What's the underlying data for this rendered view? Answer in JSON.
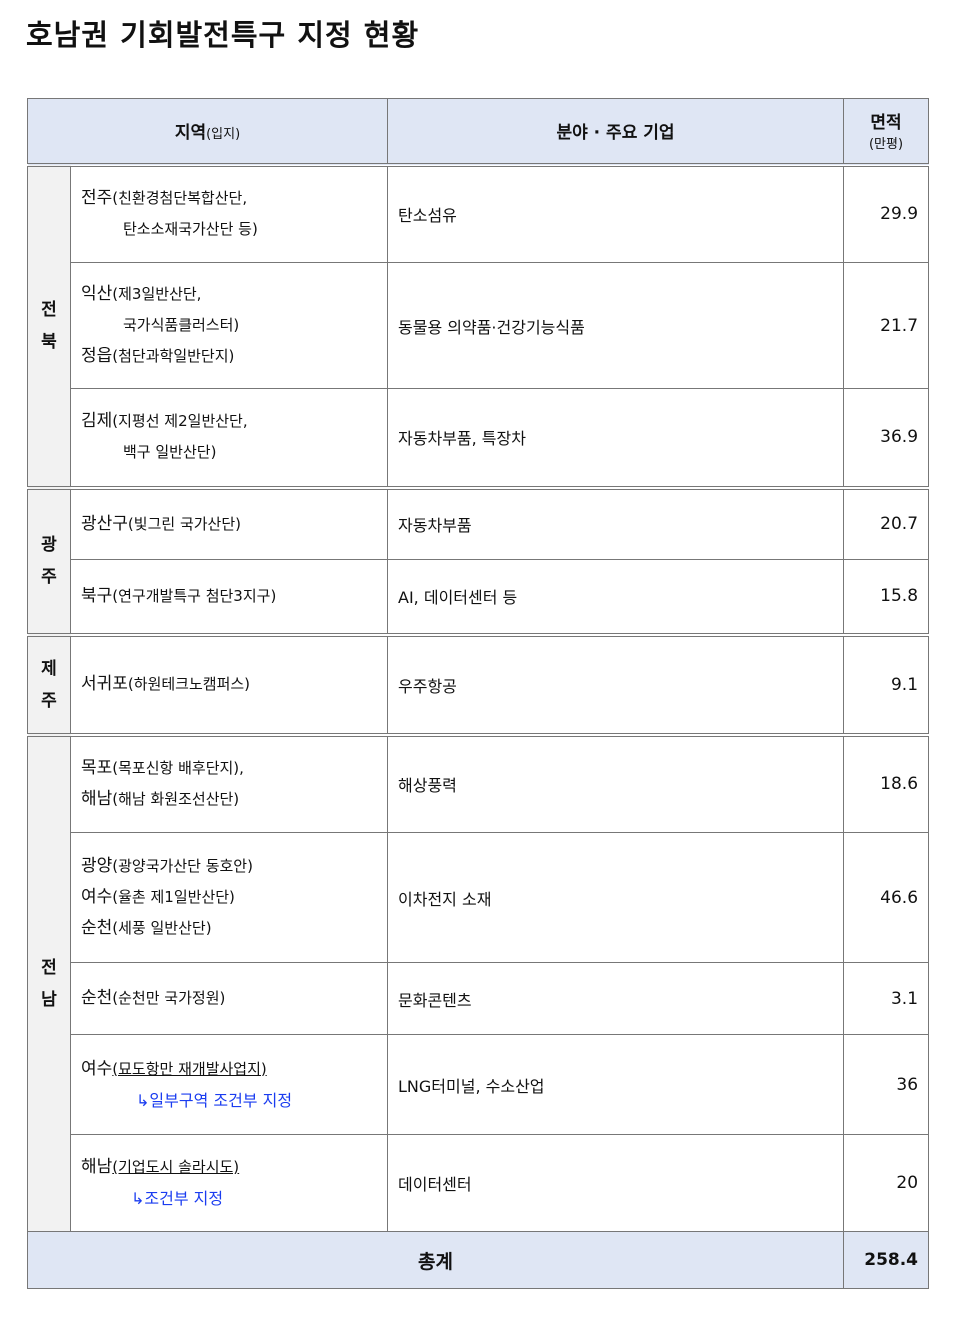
{
  "title": "호남권 기회발전특구 지정 현황",
  "header": {
    "region": "지역",
    "region_sub": "(입지)",
    "field": "분야 · 주요 기업",
    "area": "면적",
    "area_unit": "(만평)"
  },
  "groups": [
    {
      "region": "전북",
      "rows": [
        {
          "lines": [
            {
              "name": "전주",
              "paren": "(친환경첨단복합산단,"
            },
            {
              "name": "",
              "paren": "탄소소재국가산단 등)",
              "indent": true
            }
          ],
          "field": "탄소섬유",
          "area": "29.9"
        },
        {
          "lines": [
            {
              "name": "익산",
              "paren": "(제3일반산단,"
            },
            {
              "name": "",
              "paren": "국가식품클러스터)",
              "indent": true
            },
            {
              "name": "정읍",
              "paren": "(첨단과학일반단지)"
            }
          ],
          "field": "동물용 의약품·건강기능식품",
          "area": "21.7"
        },
        {
          "lines": [
            {
              "name": "김제",
              "paren": "(지평선 제2일반산단,"
            },
            {
              "name": "",
              "paren": "백구 일반산단)",
              "indent": true
            }
          ],
          "field": "자동차부품, 특장차",
          "area": "36.9"
        }
      ]
    },
    {
      "region": "광주",
      "rows": [
        {
          "lines": [
            {
              "name": "광산구",
              "paren": "(빛그린 국가산단)"
            }
          ],
          "field": "자동차부품",
          "area": "20.7"
        },
        {
          "lines": [
            {
              "name": "북구",
              "paren": "(연구개발특구 첨단3지구)"
            }
          ],
          "field": "AI, 데이터센터 등",
          "area": "15.8"
        }
      ]
    },
    {
      "region": "제주",
      "rows": [
        {
          "lines": [
            {
              "name": "서귀포",
              "paren": "(하원테크노캠퍼스)"
            }
          ],
          "field": "우주항공",
          "area": "9.1"
        }
      ]
    },
    {
      "region": "전남",
      "rows": [
        {
          "lines": [
            {
              "name": "목포",
              "paren": "(목포신항 배후단지),"
            },
            {
              "name": "해남",
              "paren": "(해남 화원조선산단)"
            }
          ],
          "field": "해상풍력",
          "area": "18.6"
        },
        {
          "lines": [
            {
              "name": "광양",
              "paren": "(광양국가산단 동호안)"
            },
            {
              "name": "여수",
              "paren": "(율촌 제1일반산단)"
            },
            {
              "name": "순천",
              "paren": "(세풍 일반산단)"
            }
          ],
          "field": "이차전지 소재",
          "area": "46.6"
        },
        {
          "lines": [
            {
              "name": "순천",
              "paren": "(순천만 국가정원)"
            }
          ],
          "field": "문화콘텐츠",
          "area": "3.1"
        },
        {
          "lines": [
            {
              "name": "여수",
              "paren": "(묘도항만 재개발사업지)",
              "underline": true
            }
          ],
          "note": "↳일부구역 조건부 지정",
          "field": "LNG터미널, 수소산업",
          "area": "36"
        },
        {
          "lines": [
            {
              "name": "해남",
              "paren": "(기업도시 솔라시도)",
              "underline": true
            }
          ],
          "note": "↳조건부 지정",
          "field": "데이터센터",
          "area": "20"
        }
      ]
    }
  ],
  "total": {
    "label": "총계",
    "area": "258.4"
  }
}
